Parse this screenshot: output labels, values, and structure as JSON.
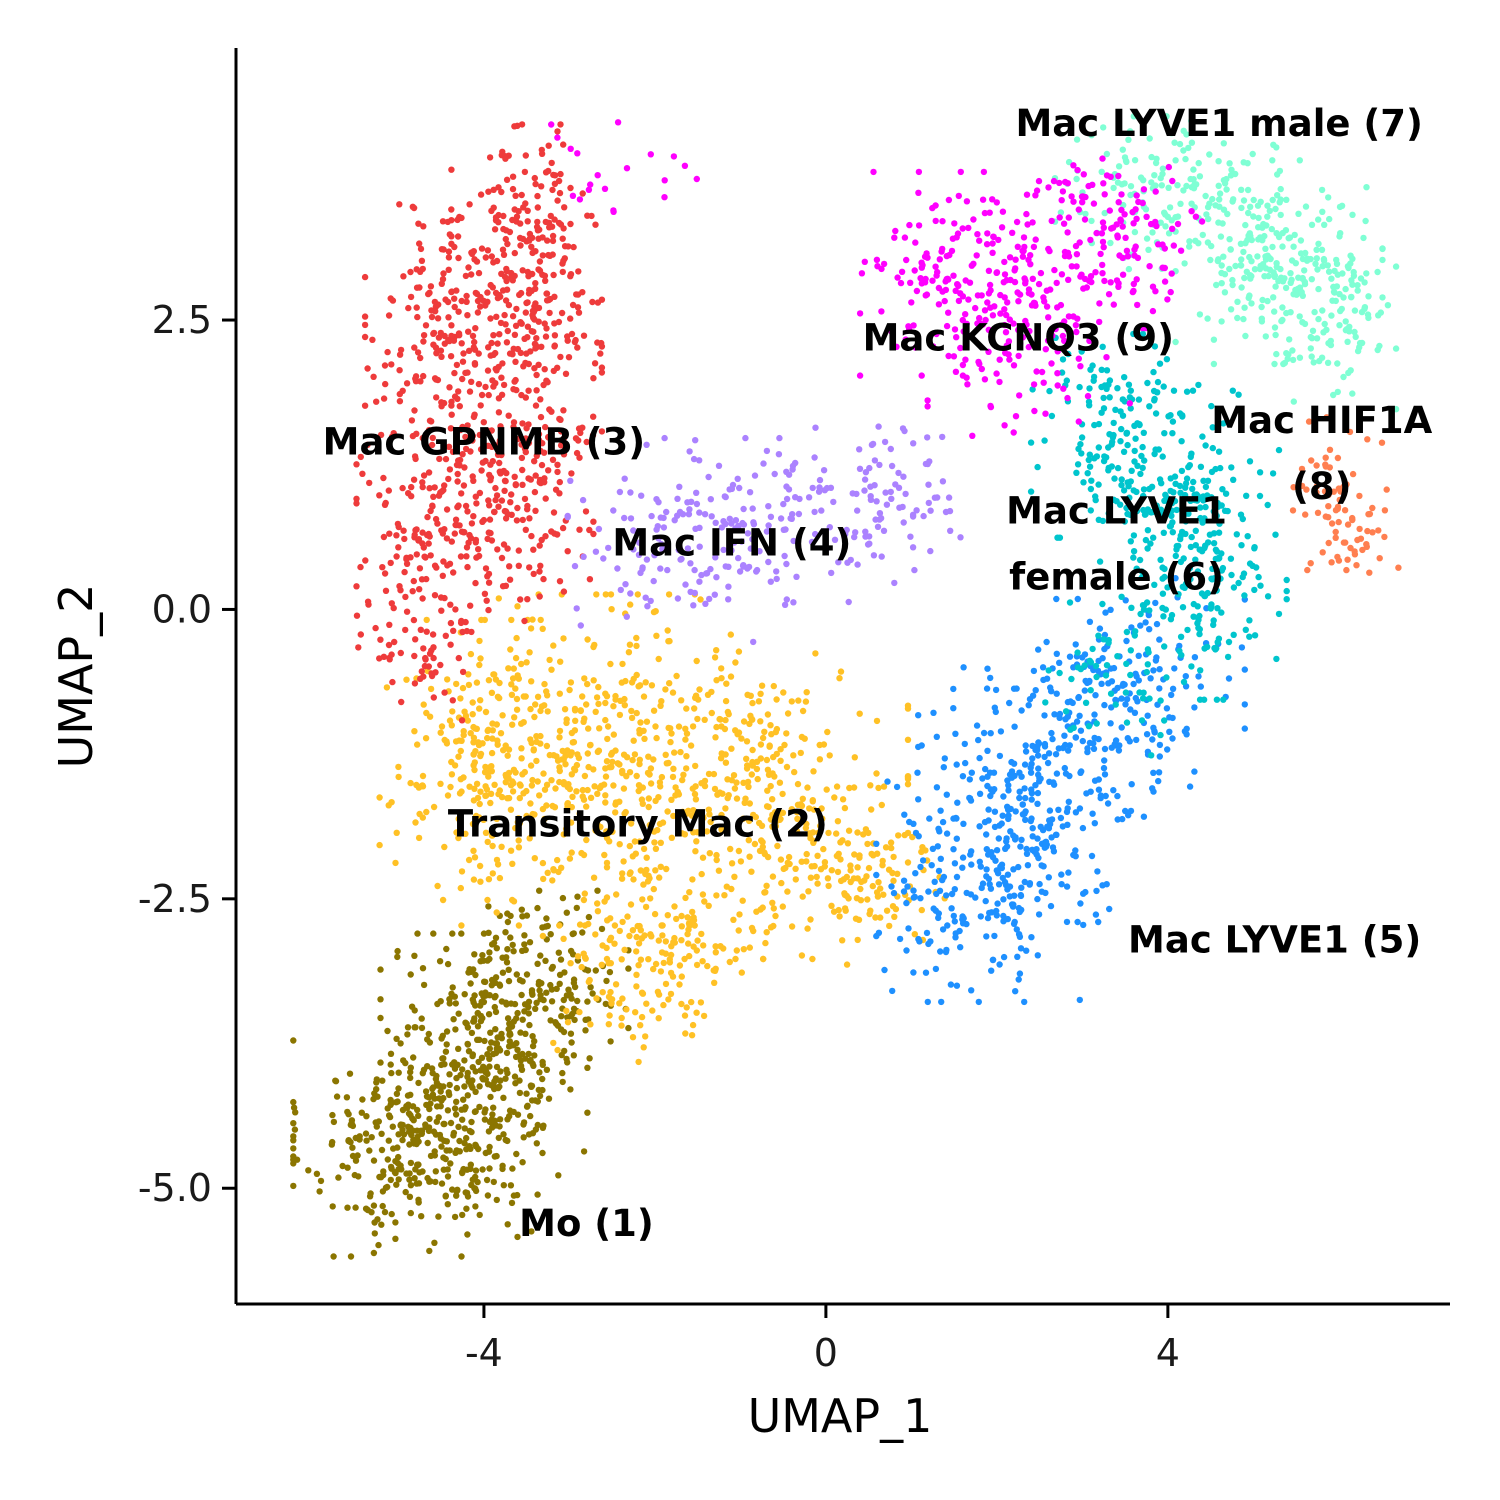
{
  "chart_data": {
    "type": "scatter",
    "title": "",
    "xlabel": "UMAP_1",
    "ylabel": "UMAP_2",
    "xlim": [
      -6.9,
      7.3
    ],
    "ylim": [
      -6.0,
      4.85
    ],
    "x_ticks": [
      -4,
      0,
      4
    ],
    "x_tick_labels": [
      "-4",
      "0",
      "4"
    ],
    "y_ticks": [
      -5.0,
      -2.5,
      0.0,
      2.5
    ],
    "y_tick_labels": [
      "-5.0",
      "-2.5",
      "0.0",
      "2.5"
    ],
    "grid": false,
    "legend": "none",
    "series": [
      {
        "name": "Mo (1)",
        "color": "#8B7500",
        "label_lines": [
          "Mo (1)"
        ],
        "label_x": -2.8,
        "label_y": -5.3,
        "regions": [
          {
            "cx": -4.8,
            "cy": -4.6,
            "sx": 0.65,
            "sy": 0.45,
            "n": 320
          },
          {
            "cx": -4.0,
            "cy": -3.9,
            "sx": 0.55,
            "sy": 0.5,
            "n": 300
          },
          {
            "cx": -3.3,
            "cy": -3.2,
            "sx": 0.45,
            "sy": 0.35,
            "n": 160
          }
        ]
      },
      {
        "name": "Transitory Mac (2)",
        "color": "#FFC125",
        "label_lines": [
          "Transitory Mac (2)"
        ],
        "label_x": -2.2,
        "label_y": -1.85,
        "regions": [
          {
            "cx": -3.9,
            "cy": -1.3,
            "sx": 0.6,
            "sy": 0.55,
            "n": 260
          },
          {
            "cx": -2.4,
            "cy": -1.3,
            "sx": 0.85,
            "sy": 0.65,
            "n": 360
          },
          {
            "cx": -0.8,
            "cy": -1.7,
            "sx": 0.8,
            "sy": 0.6,
            "n": 300
          },
          {
            "cx": 0.4,
            "cy": -2.3,
            "sx": 0.45,
            "sy": 0.35,
            "n": 110
          },
          {
            "cx": -2.1,
            "cy": -3.1,
            "sx": 0.55,
            "sy": 0.4,
            "n": 160
          }
        ]
      },
      {
        "name": "Mac GPNMB (3)",
        "color": "#EE3B3B",
        "label_lines": [
          "Mac GPNMB (3)"
        ],
        "label_x": -4.0,
        "label_y": 1.45,
        "regions": [
          {
            "cx": -3.5,
            "cy": 3.2,
            "sx": 0.4,
            "sy": 0.45,
            "n": 170
          },
          {
            "cx": -4.4,
            "cy": 2.4,
            "sx": 0.45,
            "sy": 0.5,
            "n": 170
          },
          {
            "cx": -3.5,
            "cy": 2.3,
            "sx": 0.4,
            "sy": 0.5,
            "n": 150
          },
          {
            "cx": -4.5,
            "cy": 0.9,
            "sx": 0.45,
            "sy": 0.6,
            "n": 190
          },
          {
            "cx": -3.6,
            "cy": 1.0,
            "sx": 0.4,
            "sy": 0.5,
            "n": 150
          },
          {
            "cx": -4.7,
            "cy": -0.2,
            "sx": 0.35,
            "sy": 0.35,
            "n": 60
          }
        ]
      },
      {
        "name": "Mac IFN (4)",
        "color": "#AB82FF",
        "label_lines": [
          "Mac IFN (4)"
        ],
        "label_x": -1.1,
        "label_y": 0.58,
        "regions": [
          {
            "cx": -1.7,
            "cy": 0.6,
            "sx": 0.6,
            "sy": 0.4,
            "n": 130
          },
          {
            "cx": -0.3,
            "cy": 0.8,
            "sx": 0.6,
            "sy": 0.35,
            "n": 110
          },
          {
            "cx": 0.9,
            "cy": 1.0,
            "sx": 0.4,
            "sy": 0.3,
            "n": 50
          }
        ]
      },
      {
        "name": "Mac LYVE1 (5)",
        "color": "#1E90FF",
        "label_lines": [
          "Mac LYVE1 (5)"
        ],
        "label_x": 5.25,
        "label_y": -2.85,
        "regions": [
          {
            "cx": 1.8,
            "cy": -2.4,
            "sx": 0.55,
            "sy": 0.45,
            "n": 200
          },
          {
            "cx": 2.4,
            "cy": -1.6,
            "sx": 0.6,
            "sy": 0.5,
            "n": 200
          },
          {
            "cx": 3.1,
            "cy": -0.9,
            "sx": 0.55,
            "sy": 0.45,
            "n": 140
          },
          {
            "cx": 3.8,
            "cy": -0.5,
            "sx": 0.5,
            "sy": 0.35,
            "n": 80
          }
        ]
      },
      {
        "name": "Mac LYVE1 female (6)",
        "color": "#00C5CD",
        "label_lines": [
          "Mac LYVE1",
          "female (6)"
        ],
        "label_x": 3.4,
        "label_y": 0.57,
        "regions": [
          {
            "cx": 3.5,
            "cy": 1.5,
            "sx": 0.5,
            "sy": 0.4,
            "n": 150
          },
          {
            "cx": 4.2,
            "cy": 0.9,
            "sx": 0.5,
            "sy": 0.45,
            "n": 170
          },
          {
            "cx": 4.4,
            "cy": 0.1,
            "sx": 0.45,
            "sy": 0.4,
            "n": 110
          },
          {
            "cx": 3.3,
            "cy": -0.6,
            "sx": 0.4,
            "sy": 0.3,
            "n": 50
          }
        ]
      },
      {
        "name": "Mac LYVE1 male (7)",
        "color": "#7FFFD4",
        "label_lines": [
          "Mac LYVE1 male (7)"
        ],
        "label_x": 4.6,
        "label_y": 4.2,
        "regions": [
          {
            "cx": 4.0,
            "cy": 3.6,
            "sx": 0.6,
            "sy": 0.3,
            "n": 150
          },
          {
            "cx": 5.3,
            "cy": 3.0,
            "sx": 0.55,
            "sy": 0.4,
            "n": 220
          },
          {
            "cx": 5.9,
            "cy": 2.5,
            "sx": 0.35,
            "sy": 0.35,
            "n": 90
          }
        ]
      },
      {
        "name": "Mac HIF1A (8)",
        "color": "#FF7F50",
        "label_lines": [
          "Mac HIF1A",
          "(8)"
        ],
        "label_x": 5.8,
        "label_y": 1.35,
        "regions": [
          {
            "cx": 5.9,
            "cy": 1.0,
            "sx": 0.3,
            "sy": 0.3,
            "n": 50
          },
          {
            "cx": 6.3,
            "cy": 0.6,
            "sx": 0.25,
            "sy": 0.2,
            "n": 30
          }
        ]
      },
      {
        "name": "Mac KCNQ3 (9)",
        "color": "#FF00FF",
        "label_lines": [
          "Mac KCNQ3 (9)"
        ],
        "label_x": 2.25,
        "label_y": 2.35,
        "regions": [
          {
            "cx": 1.5,
            "cy": 2.9,
            "sx": 0.5,
            "sy": 0.4,
            "n": 130
          },
          {
            "cx": 2.4,
            "cy": 2.6,
            "sx": 0.55,
            "sy": 0.5,
            "n": 170
          },
          {
            "cx": 3.3,
            "cy": 3.2,
            "sx": 0.5,
            "sy": 0.35,
            "n": 120
          },
          {
            "cx": -2.5,
            "cy": 3.8,
            "sx": 0.45,
            "sy": 0.2,
            "n": 20
          }
        ]
      }
    ]
  }
}
